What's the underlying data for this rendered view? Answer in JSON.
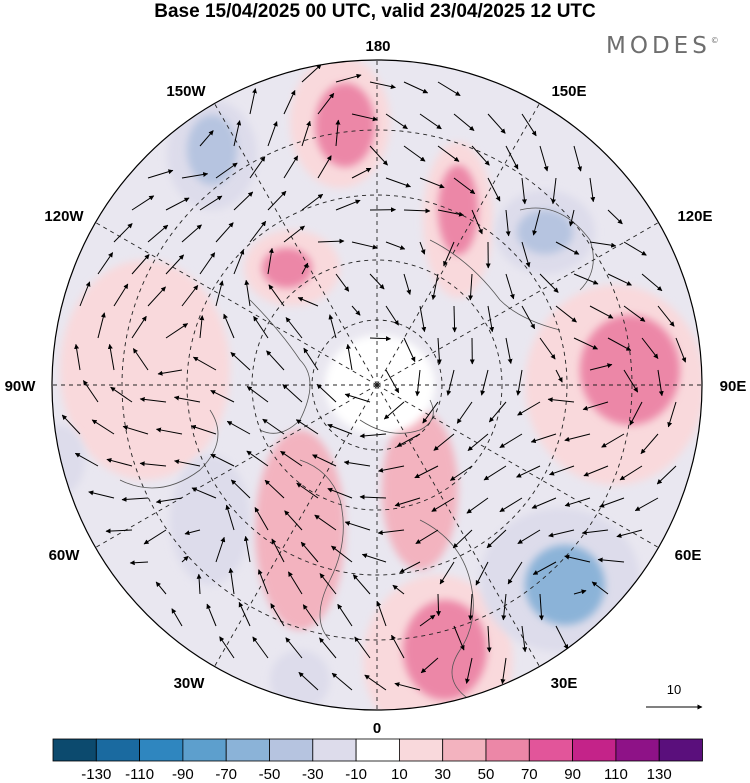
{
  "title": "Base 15/04/2025 00 UTC, valid 23/04/2025 12 UTC",
  "logo": {
    "text": "MODES",
    "mark": "©"
  },
  "map": {
    "projection": "north polar stereographic",
    "longitude_labels": {
      "top": "180",
      "top_right": "150E",
      "right_upper": "120E",
      "right": "90E",
      "right_lower": "60E",
      "bottom_right": "30E",
      "bottom": "0",
      "bottom_left": "30W",
      "left_lower": "60W",
      "left": "90W",
      "left_upper": "120W",
      "top_left": "150W"
    },
    "reference_vector": {
      "label": "10"
    },
    "anomaly_centers": [
      {
        "name": "positive-north-pacific",
        "sign": "positive",
        "intensity": 60
      },
      {
        "name": "positive-bering",
        "sign": "positive",
        "intensity": 55
      },
      {
        "name": "positive-alaska",
        "sign": "positive",
        "intensity": 55
      },
      {
        "name": "positive-siberia",
        "sign": "positive",
        "intensity": 60
      },
      {
        "name": "positive-europe",
        "sign": "positive",
        "intensity": 60
      },
      {
        "name": "positive-canada",
        "sign": "positive",
        "intensity": 35
      },
      {
        "name": "negative-gulf-alaska",
        "sign": "negative",
        "intensity": -45
      },
      {
        "name": "negative-okhotsk",
        "sign": "negative",
        "intensity": -45
      },
      {
        "name": "negative-west-russia",
        "sign": "negative",
        "intensity": -60
      },
      {
        "name": "negative-hudson",
        "sign": "negative",
        "intensity": -30
      }
    ]
  },
  "colorbar": {
    "colors": [
      "#0c4a6e",
      "#1a6aa0",
      "#2f86bf",
      "#5d9fcd",
      "#8bb3d8",
      "#b6c4e0",
      "#dddceb",
      "#ffffff",
      "#f9d9dc",
      "#f3b3bf",
      "#ec87a7",
      "#e2559a",
      "#c42389",
      "#8e1287",
      "#5a0f7c"
    ],
    "labels": [
      "-130",
      "-110",
      "-90",
      "-70",
      "-50",
      "-30",
      "-10",
      "10",
      "30",
      "50",
      "70",
      "90",
      "110",
      "130"
    ]
  }
}
